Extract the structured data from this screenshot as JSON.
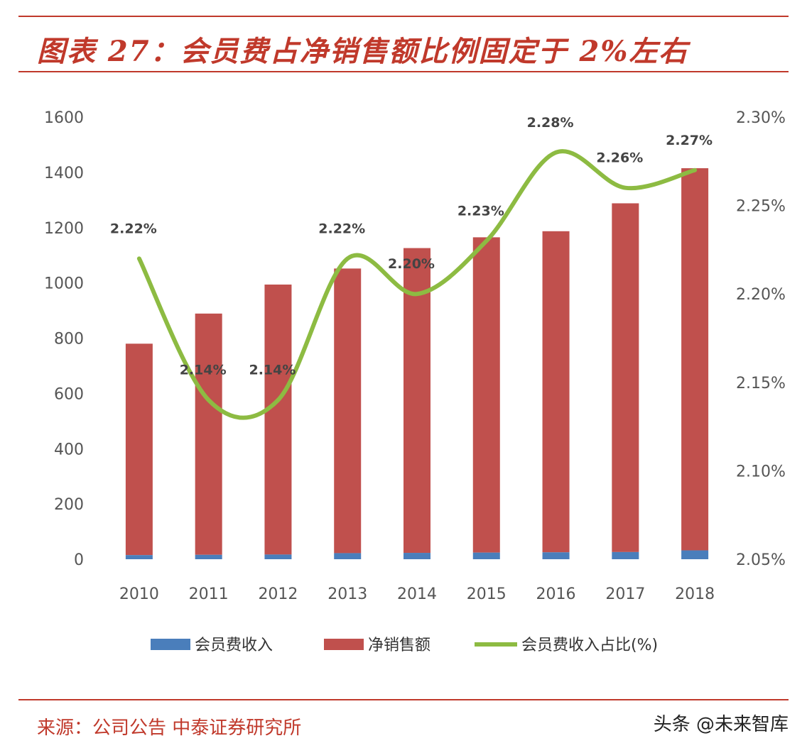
{
  "header": {
    "title": "图表 27：会员费占净销售额比例固定于 2%左右"
  },
  "footer": {
    "source": "来源：公司公告 中泰证券研究所",
    "watermark": "头条 @未来智库"
  },
  "colors": {
    "membership_fee": "#4a7ebb",
    "net_sales": "#c0504d",
    "ratio": "#8dbb42",
    "accent": "#c0392b"
  },
  "chart_data": {
    "type": "bar",
    "categories": [
      "2010",
      "2011",
      "2012",
      "2013",
      "2014",
      "2015",
      "2016",
      "2017",
      "2018"
    ],
    "series": [
      {
        "name": "会员费收入",
        "type": "bar",
        "axis": "left",
        "stacked": true,
        "values": [
          15,
          16,
          17,
          22,
          23,
          24,
          25,
          26,
          32
        ]
      },
      {
        "name": "净销售额",
        "type": "bar",
        "axis": "left",
        "stacked": true,
        "values": [
          765,
          873,
          977,
          1030,
          1103,
          1141,
          1162,
          1262,
          1383
        ]
      },
      {
        "name": "会员费收入占比(%)",
        "type": "line",
        "axis": "right",
        "smooth": true,
        "values": [
          2.22,
          2.14,
          2.14,
          2.22,
          2.2,
          2.23,
          2.28,
          2.26,
          2.27
        ],
        "data_labels": [
          "2.22%",
          "2.14%",
          "2.14%",
          "2.22%",
          "2.20%",
          "2.23%",
          "2.28%",
          "2.26%",
          "2.27%"
        ]
      }
    ],
    "y_left": {
      "ticks": [
        "0",
        "200",
        "400",
        "600",
        "800",
        "1000",
        "1200",
        "1400",
        "1600"
      ],
      "range": [
        0,
        1600
      ]
    },
    "y_right": {
      "ticks": [
        "2.05%",
        "2.10%",
        "2.15%",
        "2.20%",
        "2.25%",
        "2.30%"
      ],
      "range": [
        2.05,
        2.3
      ]
    },
    "legend": [
      "会员费收入",
      "净销售额",
      "会员费收入占比(%)"
    ],
    "legend_position": "bottom",
    "grid": false
  }
}
